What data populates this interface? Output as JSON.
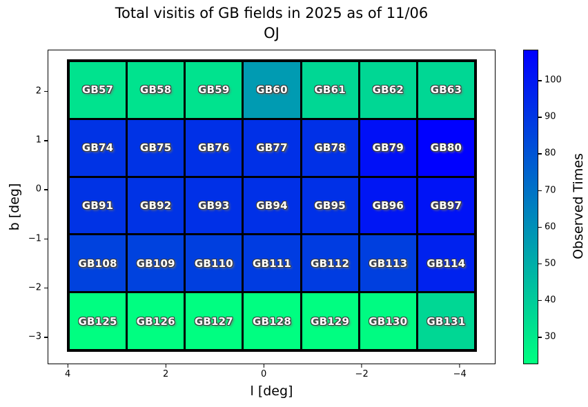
{
  "chart_data": {
    "type": "heatmap",
    "title_line1": "Total visitis of GB fields in 2025 as of 11/06",
    "title_line2": "OJ",
    "xlabel": "l [deg]",
    "ylabel": "b [deg]",
    "colorbar_label": "Observed Times",
    "xlim": [
      4.41,
      -4.73
    ],
    "ylim": [
      2.84,
      -3.56
    ],
    "x_ticks": [
      {
        "v": 4,
        "label": "4"
      },
      {
        "v": 2,
        "label": "2"
      },
      {
        "v": 0,
        "label": "0"
      },
      {
        "v": -2,
        "label": "−2"
      },
      {
        "v": -4,
        "label": "−4"
      }
    ],
    "y_ticks": [
      {
        "v": 2,
        "label": "2"
      },
      {
        "v": 1,
        "label": "1"
      },
      {
        "v": 0,
        "label": "0"
      },
      {
        "v": -1,
        "label": "−1"
      },
      {
        "v": -2,
        "label": "−2"
      },
      {
        "v": -3,
        "label": "−3"
      }
    ],
    "colorbar": {
      "cmap": "winter_r",
      "vmin": 22.5,
      "vmax": 108.3,
      "top_color": "#0000ff",
      "bottom_color": "#00ff80",
      "ticks": [
        {
          "v": 100,
          "label": "100"
        },
        {
          "v": 90,
          "label": "90"
        },
        {
          "v": 80,
          "label": "80"
        },
        {
          "v": 70,
          "label": "70"
        },
        {
          "v": 60,
          "label": "60"
        },
        {
          "v": 50,
          "label": "50"
        },
        {
          "v": 40,
          "label": "40"
        },
        {
          "v": 30,
          "label": "30"
        }
      ]
    },
    "l_centers": [
      3.39,
      2.2,
      1.02,
      -0.17,
      -1.35,
      -2.54,
      -3.72
    ],
    "rows": [
      {
        "b_center": 2.02,
        "fields": [
          {
            "name": "GB57",
            "value": 32
          },
          {
            "name": "GB58",
            "value": 32
          },
          {
            "name": "GB59",
            "value": 32
          },
          {
            "name": "GB60",
            "value": 56
          },
          {
            "name": "GB61",
            "value": 36
          },
          {
            "name": "GB62",
            "value": 36
          },
          {
            "name": "GB63",
            "value": 36
          }
        ]
      },
      {
        "b_center": 0.84,
        "fields": [
          {
            "name": "GB74",
            "value": 91
          },
          {
            "name": "GB75",
            "value": 91
          },
          {
            "name": "GB76",
            "value": 92
          },
          {
            "name": "GB77",
            "value": 92
          },
          {
            "name": "GB78",
            "value": 92
          },
          {
            "name": "GB79",
            "value": 103
          },
          {
            "name": "GB80",
            "value": 108
          }
        ]
      },
      {
        "b_center": -0.33,
        "fields": [
          {
            "name": "GB91",
            "value": 91
          },
          {
            "name": "GB92",
            "value": 91
          },
          {
            "name": "GB93",
            "value": 92
          },
          {
            "name": "GB94",
            "value": 92
          },
          {
            "name": "GB95",
            "value": 92
          },
          {
            "name": "GB96",
            "value": 101
          },
          {
            "name": "GB97",
            "value": 102
          }
        ]
      },
      {
        "b_center": -1.51,
        "fields": [
          {
            "name": "GB108",
            "value": 86
          },
          {
            "name": "GB109",
            "value": 86
          },
          {
            "name": "GB110",
            "value": 87
          },
          {
            "name": "GB111",
            "value": 88
          },
          {
            "name": "GB112",
            "value": 88
          },
          {
            "name": "GB113",
            "value": 87
          },
          {
            "name": "GB114",
            "value": 97
          }
        ]
      },
      {
        "b_center": -2.68,
        "fields": [
          {
            "name": "GB125",
            "value": 23
          },
          {
            "name": "GB126",
            "value": 23
          },
          {
            "name": "GB127",
            "value": 23
          },
          {
            "name": "GB128",
            "value": 23
          },
          {
            "name": "GB129",
            "value": 23
          },
          {
            "name": "GB130",
            "value": 24
          },
          {
            "name": "GB131",
            "value": 36
          }
        ]
      }
    ]
  }
}
